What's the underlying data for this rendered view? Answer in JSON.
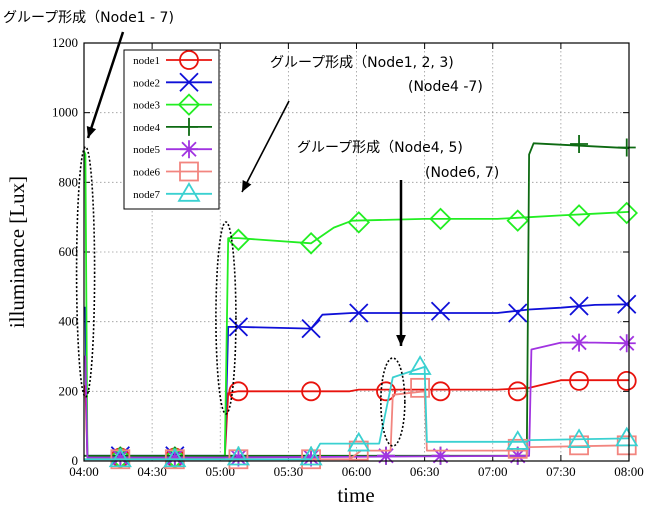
{
  "chart_data": {
    "type": "line",
    "xlabel": "time",
    "ylabel": "illuminance [Lux]",
    "ylim": [
      0,
      1200
    ],
    "yticks": [
      0,
      200,
      400,
      600,
      800,
      1000,
      1200
    ],
    "xticks": [
      "04:00",
      "04:30",
      "05:00",
      "05:30",
      "06:00",
      "06:30",
      "07:00",
      "07:30",
      "08:00"
    ],
    "xlim_minutes": [
      0,
      240
    ],
    "grid": true,
    "legend_position": "top-left",
    "series": [
      {
        "name": "node1",
        "color": "#e8130d",
        "marker": "circle",
        "x": [
          0,
          0.6,
          1.5,
          32,
          33,
          46,
          47,
          62,
          63.5,
          68,
          82,
          94,
          117,
          121,
          150,
          182,
          196,
          210,
          225,
          240
        ],
        "y": [
          215,
          215,
          10,
          10,
          10,
          10,
          10,
          10,
          195,
          200,
          200,
          200,
          200,
          205,
          205,
          205,
          210,
          232,
          232,
          232
        ],
        "mx": [
          16,
          40,
          68,
          100,
          133,
          157,
          191,
          218,
          239
        ],
        "my": [
          10,
          10,
          200,
          200,
          200,
          200,
          200,
          230,
          230
        ]
      },
      {
        "name": "node2",
        "color": "#0f10d8",
        "marker": "x",
        "x": [
          0,
          0.6,
          1.5,
          62,
          63.5,
          68,
          100,
          105,
          118,
          150,
          182,
          196,
          210,
          225,
          240
        ],
        "y": [
          440,
          440,
          15,
          15,
          385,
          385,
          380,
          420,
          425,
          425,
          425,
          435,
          440,
          448,
          450
        ],
        "mx": [
          16,
          40,
          68,
          100,
          121,
          157,
          191,
          218,
          239
        ],
        "my": [
          15,
          15,
          385,
          380,
          425,
          430,
          425,
          445,
          450
        ]
      },
      {
        "name": "node3",
        "color": "#22ee22",
        "marker": "diamond",
        "x": [
          0,
          0.6,
          1.5,
          62,
          63.5,
          68,
          100,
          110,
          118,
          150,
          182,
          196,
          210,
          225,
          240
        ],
        "y": [
          890,
          880,
          10,
          10,
          640,
          640,
          625,
          670,
          690,
          695,
          695,
          700,
          705,
          710,
          715
        ],
        "mx": [
          16,
          40,
          68,
          100,
          121,
          157,
          191,
          218,
          239
        ],
        "my": [
          10,
          10,
          635,
          625,
          685,
          695,
          690,
          705,
          712
        ]
      },
      {
        "name": "node4",
        "color": "#0d6a12",
        "marker": "plus",
        "x": [
          0,
          0.6,
          1.5,
          62,
          117,
          143,
          149,
          150,
          195,
          196,
          198,
          240
        ],
        "y": [
          15,
          15,
          15,
          15,
          15,
          15,
          15,
          15,
          15,
          880,
          912,
          898
        ],
        "mx": [
          16,
          40,
          68,
          100,
          133,
          157,
          191,
          218,
          239
        ],
        "my": [
          15,
          15,
          15,
          15,
          15,
          15,
          15,
          910,
          900
        ]
      },
      {
        "name": "node5",
        "color": "#a133e1",
        "marker": "star",
        "x": [
          0,
          0.6,
          1.5,
          62,
          196,
          197,
          210,
          225,
          240
        ],
        "y": [
          300,
          300,
          10,
          10,
          15,
          320,
          340,
          340,
          338
        ],
        "mx": [
          16,
          40,
          68,
          100,
          133,
          157,
          191,
          218,
          239
        ],
        "my": [
          10,
          10,
          10,
          10,
          15,
          15,
          15,
          340,
          338
        ]
      },
      {
        "name": "node6",
        "color": "#f2857f",
        "marker": "square",
        "x": [
          0,
          0.6,
          1.5,
          62,
          117,
          122,
          135,
          136,
          150,
          151,
          195,
          196,
          240
        ],
        "y": [
          5,
          5,
          5,
          5,
          5,
          30,
          30,
          190,
          200,
          30,
          30,
          40,
          45
        ],
        "mx": [
          16,
          40,
          68,
          100,
          121,
          148,
          191,
          218,
          239
        ],
        "my": [
          5,
          5,
          5,
          5,
          30,
          210,
          35,
          45,
          45
        ]
      },
      {
        "name": "node7",
        "color": "#3ad1d1",
        "marker": "triangle",
        "x": [
          0,
          0.6,
          1.5,
          62,
          100,
          104,
          117,
          130,
          136,
          150,
          151,
          195,
          196,
          240
        ],
        "y": [
          5,
          5,
          5,
          5,
          5,
          50,
          50,
          50,
          240,
          270,
          55,
          55,
          60,
          65
        ],
        "mx": [
          16,
          40,
          68,
          100,
          121,
          148,
          191,
          218,
          239
        ],
        "my": [
          5,
          5,
          10,
          10,
          50,
          270,
          55,
          60,
          65
        ]
      }
    ],
    "annotations": [
      {
        "text": "グループ形成（Node1 - 7)"
      },
      {
        "text": "グループ形成（Node1, 2, 3)"
      },
      {
        "text": "(Node4 -7)"
      },
      {
        "text": "グループ形成（Node4, 5)"
      },
      {
        "text": "(Node6, 7)"
      }
    ]
  }
}
